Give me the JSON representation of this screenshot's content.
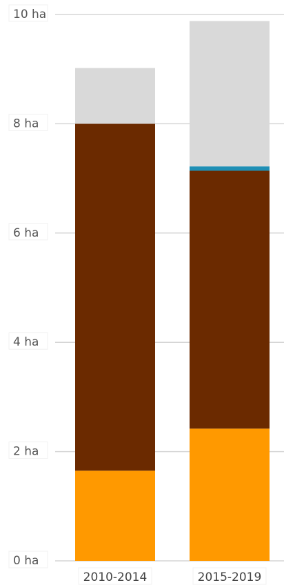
{
  "chart_data": {
    "type": "bar",
    "stacked": true,
    "categories": [
      "2010-2014",
      "2015-2019"
    ],
    "series": [
      {
        "color": "#ff9900",
        "values": [
          1.65,
          2.42
        ]
      },
      {
        "color": "#6b2a00",
        "values": [
          6.35,
          4.72
        ]
      },
      {
        "color": "#1f8fb5",
        "values": [
          0.0,
          0.08
        ]
      },
      {
        "color": "#d9d9d9",
        "values": [
          1.02,
          2.66
        ]
      }
    ],
    "y_ticks": [
      "0 ha",
      "2 ha",
      "4 ha",
      "6 ha",
      "8 ha",
      "10 ha"
    ],
    "ylim": [
      0,
      10
    ],
    "grid": true,
    "title": "",
    "xlabel": "",
    "ylabel": ""
  }
}
